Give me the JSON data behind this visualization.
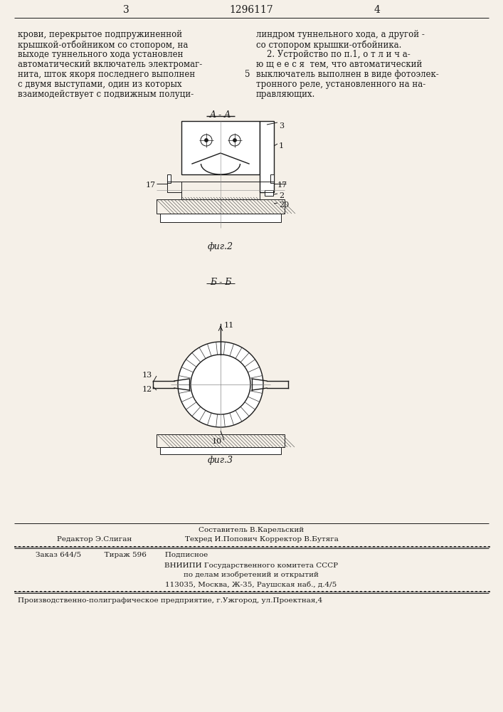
{
  "bg_color": "#f5f0e8",
  "page_color": "#f0ebe0",
  "header_left_num": "3",
  "header_center": "1296117",
  "header_right_num": "4",
  "text_col1_lines": [
    "крови, перекрытое подпружиненной",
    "крышкой-отбойником со стопором, на",
    "выходе туннельного хода установлен",
    "автоматический включатель электромаг-",
    "нита, шток якоря последнего выполнен",
    "с двумя выступами, один из которых",
    "взаимодействует с подвижным полуци-"
  ],
  "text_col1_num5": "5",
  "text_col2_lines": [
    "линдром туннельного хода, а другой -",
    "со стопором крышки-отбойника.",
    "    2. Устройство по п.1, о т л и ч а-",
    "ю щ е е с я  тем, что автоматический",
    "выключатель выполнен в виде фотоэлек-",
    "тронного реле, установленного на на-",
    "правляющих."
  ],
  "fig2_label": "фиг.2",
  "fig3_label": "фиг.3",
  "section_aa": "A - A",
  "section_bb": "Б - Б",
  "editor_line": "Редактор Э.Слиган",
  "composer_line": "Составитель В.Карельский",
  "techred_line": "Техред И.Попович Корректор В.Бутяга",
  "order_line": "Заказ 644/5          Тираж 596        Подписное",
  "vnipi_line1": "ВНИИПИ Государственного комитета СССР",
  "vnipi_line2": "по делам изобретений и открытий",
  "vnipi_line3": "113035, Москва, Ж-35, Раушская наб., д.4/5",
  "poligraph_line": "Производственно-полиграфическое предприятие, г.Ужгород, ул.Проектная,4"
}
